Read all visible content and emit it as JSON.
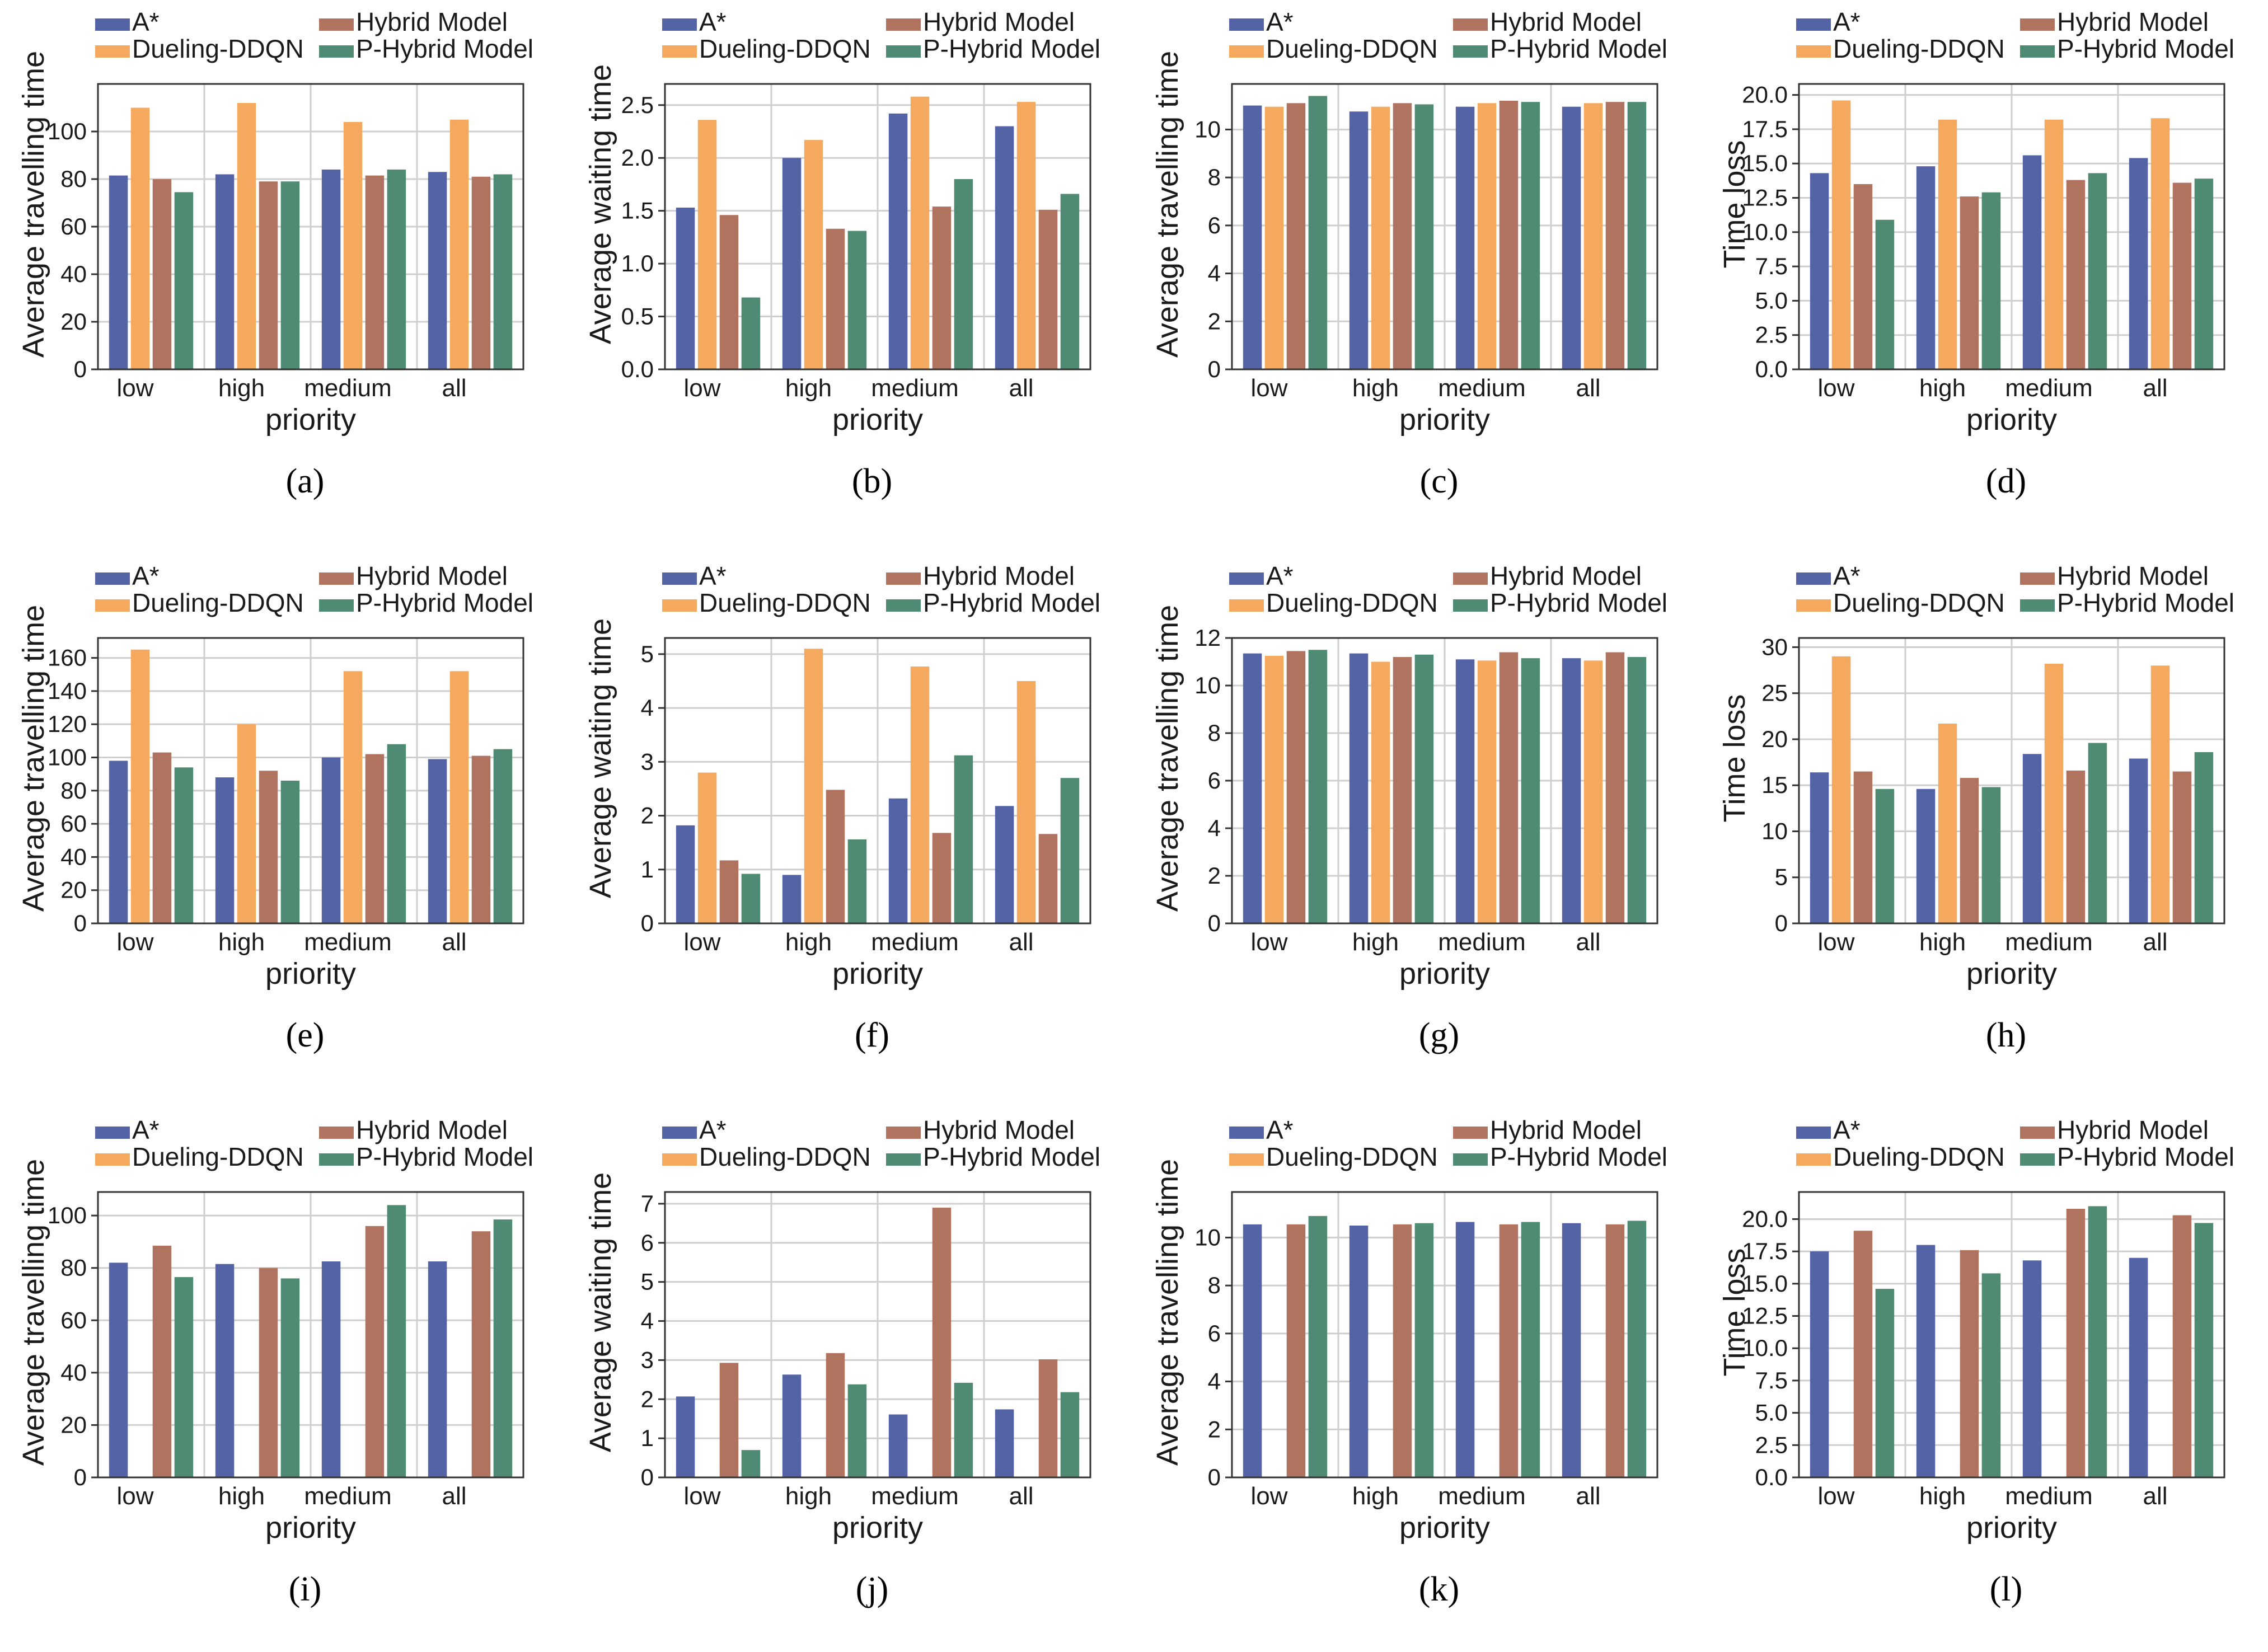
{
  "legend_labels": [
    "A*",
    "Dueling-DDQN",
    "Hybrid Model",
    "P-Hybrid Model"
  ],
  "colors": {
    "astar": "#5462a6",
    "dueling": "#f4a95e",
    "hybrid": "#b07360",
    "phybrid": "#4f8a72",
    "grid": "#cfcfcf",
    "axis": "#333333"
  },
  "chart_data": [
    {
      "id": "a",
      "caption": "(a)",
      "type": "bar",
      "title": "",
      "xlabel": "priority",
      "ylabel": "Average travelling time",
      "categories": [
        "low",
        "high",
        "medium",
        "all"
      ],
      "ylim": [
        0,
        120
      ],
      "yticks": [
        "0",
        "20",
        "40",
        "60",
        "80",
        "100"
      ],
      "ytick_values": [
        0,
        20,
        40,
        60,
        80,
        100
      ],
      "series": [
        {
          "name": "A*",
          "values": [
            81.5,
            82,
            84,
            83
          ]
        },
        {
          "name": "Dueling-DDQN",
          "values": [
            110,
            112,
            104,
            105
          ]
        },
        {
          "name": "Hybrid Model",
          "values": [
            80,
            79,
            81.5,
            81
          ]
        },
        {
          "name": "P-Hybrid Model",
          "values": [
            74.5,
            79,
            84,
            82
          ]
        }
      ]
    },
    {
      "id": "b",
      "caption": "(b)",
      "type": "bar",
      "title": "",
      "xlabel": "priority",
      "ylabel": "Average waiting time",
      "categories": [
        "low",
        "high",
        "medium",
        "all"
      ],
      "ylim": [
        0,
        2.7
      ],
      "yticks": [
        "0.0",
        "0.5",
        "1.0",
        "1.5",
        "2.0",
        "2.5"
      ],
      "ytick_values": [
        0,
        0.5,
        1.0,
        1.5,
        2.0,
        2.5
      ],
      "series": [
        {
          "name": "A*",
          "values": [
            1.53,
            2.0,
            2.42,
            2.3
          ]
        },
        {
          "name": "Dueling-DDQN",
          "values": [
            2.36,
            2.17,
            2.58,
            2.53
          ]
        },
        {
          "name": "Hybrid Model",
          "values": [
            1.46,
            1.33,
            1.54,
            1.51
          ]
        },
        {
          "name": "P-Hybrid Model",
          "values": [
            0.68,
            1.31,
            1.8,
            1.66
          ]
        }
      ]
    },
    {
      "id": "c",
      "caption": "(c)",
      "type": "bar",
      "title": "",
      "xlabel": "priority",
      "ylabel": "Average travelling time",
      "categories": [
        "low",
        "high",
        "medium",
        "all"
      ],
      "ylim": [
        0,
        11.9
      ],
      "yticks": [
        "0",
        "2",
        "4",
        "6",
        "8",
        "10"
      ],
      "ytick_values": [
        0,
        2,
        4,
        6,
        8,
        10
      ],
      "series": [
        {
          "name": "A*",
          "values": [
            11.0,
            10.75,
            10.95,
            10.95
          ]
        },
        {
          "name": "Dueling-DDQN",
          "values": [
            10.95,
            10.95,
            11.1,
            11.1
          ]
        },
        {
          "name": "Hybrid Model",
          "values": [
            11.1,
            11.1,
            11.2,
            11.15
          ]
        },
        {
          "name": "P-Hybrid Model",
          "values": [
            11.4,
            11.05,
            11.15,
            11.15
          ]
        }
      ]
    },
    {
      "id": "d",
      "caption": "(d)",
      "type": "bar",
      "title": "",
      "xlabel": "priority",
      "ylabel": "Time loss",
      "categories": [
        "low",
        "high",
        "medium",
        "all"
      ],
      "ylim": [
        0,
        20.8
      ],
      "yticks": [
        "0.0",
        "2.5",
        "5.0",
        "7.5",
        "10.0",
        "12.5",
        "15.0",
        "17.5",
        "20.0"
      ],
      "ytick_values": [
        0,
        2.5,
        5,
        7.5,
        10,
        12.5,
        15,
        17.5,
        20
      ],
      "series": [
        {
          "name": "A*",
          "values": [
            14.3,
            14.8,
            15.6,
            15.4
          ]
        },
        {
          "name": "Dueling-DDQN",
          "values": [
            19.6,
            18.2,
            18.2,
            18.3
          ]
        },
        {
          "name": "Hybrid Model",
          "values": [
            13.5,
            12.6,
            13.8,
            13.6
          ]
        },
        {
          "name": "P-Hybrid Model",
          "values": [
            10.9,
            12.9,
            14.3,
            13.9
          ]
        }
      ]
    },
    {
      "id": "e",
      "caption": "(e)",
      "type": "bar",
      "title": "",
      "xlabel": "priority",
      "ylabel": "Average travelling time",
      "categories": [
        "low",
        "high",
        "medium",
        "all"
      ],
      "ylim": [
        0,
        172
      ],
      "yticks": [
        "0",
        "20",
        "40",
        "60",
        "80",
        "100",
        "120",
        "140",
        "160"
      ],
      "ytick_values": [
        0,
        20,
        40,
        60,
        80,
        100,
        120,
        140,
        160
      ],
      "series": [
        {
          "name": "A*",
          "values": [
            98,
            88,
            100,
            99
          ]
        },
        {
          "name": "Dueling-DDQN",
          "values": [
            165,
            120,
            152,
            152
          ]
        },
        {
          "name": "Hybrid Model",
          "values": [
            103,
            92,
            102,
            101
          ]
        },
        {
          "name": "P-Hybrid Model",
          "values": [
            94,
            86,
            108,
            105
          ]
        }
      ]
    },
    {
      "id": "f",
      "caption": "(f)",
      "type": "bar",
      "title": "",
      "xlabel": "priority",
      "ylabel": "Average waiting time",
      "categories": [
        "low",
        "high",
        "medium",
        "all"
      ],
      "ylim": [
        0,
        5.3
      ],
      "yticks": [
        "0",
        "1",
        "2",
        "3",
        "4",
        "5"
      ],
      "ytick_values": [
        0,
        1,
        2,
        3,
        4,
        5
      ],
      "series": [
        {
          "name": "A*",
          "values": [
            1.82,
            0.9,
            2.32,
            2.18
          ]
        },
        {
          "name": "Dueling-DDQN",
          "values": [
            2.8,
            5.1,
            4.77,
            4.5
          ]
        },
        {
          "name": "Hybrid Model",
          "values": [
            1.17,
            2.48,
            1.68,
            1.66
          ]
        },
        {
          "name": "P-Hybrid Model",
          "values": [
            0.92,
            1.56,
            3.12,
            2.7
          ]
        }
      ]
    },
    {
      "id": "g",
      "caption": "(g)",
      "type": "bar",
      "title": "",
      "xlabel": "priority",
      "ylabel": "Average travelling time",
      "categories": [
        "low",
        "high",
        "medium",
        "all"
      ],
      "ylim": [
        0,
        12
      ],
      "yticks": [
        "0",
        "2",
        "4",
        "6",
        "8",
        "10",
        "12"
      ],
      "ytick_values": [
        0,
        2,
        4,
        6,
        8,
        10,
        12
      ],
      "series": [
        {
          "name": "A*",
          "values": [
            11.35,
            11.35,
            11.1,
            11.15
          ]
        },
        {
          "name": "Dueling-DDQN",
          "values": [
            11.25,
            11.0,
            11.05,
            11.05
          ]
        },
        {
          "name": "Hybrid Model",
          "values": [
            11.45,
            11.2,
            11.4,
            11.4
          ]
        },
        {
          "name": "P-Hybrid Model",
          "values": [
            11.5,
            11.3,
            11.15,
            11.2
          ]
        }
      ]
    },
    {
      "id": "h",
      "caption": "(h)",
      "type": "bar",
      "title": "",
      "xlabel": "priority",
      "ylabel": "Time loss",
      "categories": [
        "low",
        "high",
        "medium",
        "all"
      ],
      "ylim": [
        0,
        31
      ],
      "yticks": [
        "0",
        "5",
        "10",
        "15",
        "20",
        "25",
        "30"
      ],
      "ytick_values": [
        0,
        5,
        10,
        15,
        20,
        25,
        30
      ],
      "series": [
        {
          "name": "A*",
          "values": [
            16.4,
            14.6,
            18.4,
            17.9
          ]
        },
        {
          "name": "Dueling-DDQN",
          "values": [
            29.0,
            21.7,
            28.2,
            28.0
          ]
        },
        {
          "name": "Hybrid Model",
          "values": [
            16.5,
            15.8,
            16.6,
            16.5
          ]
        },
        {
          "name": "P-Hybrid Model",
          "values": [
            14.6,
            14.8,
            19.6,
            18.6
          ]
        }
      ]
    },
    {
      "id": "i",
      "caption": "(i)",
      "type": "bar",
      "title": "",
      "xlabel": "priority",
      "ylabel": "Average travelling time",
      "categories": [
        "low",
        "high",
        "medium",
        "all"
      ],
      "ylim": [
        0,
        109
      ],
      "yticks": [
        "0",
        "20",
        "40",
        "60",
        "80",
        "100"
      ],
      "ytick_values": [
        0,
        20,
        40,
        60,
        80,
        100
      ],
      "series": [
        {
          "name": "A*",
          "values": [
            82,
            81.5,
            82.5,
            82.5
          ]
        },
        {
          "name": "Dueling-DDQN",
          "values": [
            0,
            0,
            0,
            0
          ]
        },
        {
          "name": "Hybrid Model",
          "values": [
            88.5,
            80,
            96,
            94
          ]
        },
        {
          "name": "P-Hybrid Model",
          "values": [
            76.5,
            76,
            104,
            98.5
          ]
        }
      ]
    },
    {
      "id": "j",
      "caption": "(j)",
      "type": "bar",
      "title": "",
      "xlabel": "priority",
      "ylabel": "Average waiting time",
      "categories": [
        "low",
        "high",
        "medium",
        "all"
      ],
      "ylim": [
        0,
        7.3
      ],
      "yticks": [
        "0",
        "1",
        "2",
        "3",
        "4",
        "5",
        "6",
        "7"
      ],
      "ytick_values": [
        0,
        1,
        2,
        3,
        4,
        5,
        6,
        7
      ],
      "series": [
        {
          "name": "A*",
          "values": [
            2.07,
            2.63,
            1.61,
            1.74
          ]
        },
        {
          "name": "Dueling-DDQN",
          "values": [
            0,
            0,
            0,
            0
          ]
        },
        {
          "name": "Hybrid Model",
          "values": [
            2.93,
            3.18,
            6.9,
            3.02
          ]
        },
        {
          "name": "P-Hybrid Model",
          "values": [
            0.7,
            2.38,
            2.42,
            2.18
          ]
        }
      ]
    },
    {
      "id": "k",
      "caption": "(k)",
      "type": "bar",
      "title": "",
      "xlabel": "priority",
      "ylabel": "Average travelling time",
      "categories": [
        "low",
        "high",
        "medium",
        "all"
      ],
      "ylim": [
        0,
        11.9
      ],
      "yticks": [
        "0",
        "2",
        "4",
        "6",
        "8",
        "10"
      ],
      "ytick_values": [
        0,
        2,
        4,
        6,
        8,
        10
      ],
      "series": [
        {
          "name": "A*",
          "values": [
            10.55,
            10.5,
            10.65,
            10.6
          ]
        },
        {
          "name": "Dueling-DDQN",
          "values": [
            0,
            0,
            0,
            0
          ]
        },
        {
          "name": "Hybrid Model",
          "values": [
            10.55,
            10.55,
            10.55,
            10.55
          ]
        },
        {
          "name": "P-Hybrid Model",
          "values": [
            10.9,
            10.6,
            10.65,
            10.7
          ]
        }
      ]
    },
    {
      "id": "l",
      "caption": "(l)",
      "type": "bar",
      "title": "",
      "xlabel": "priority",
      "ylabel": "Time loss",
      "categories": [
        "low",
        "high",
        "medium",
        "all"
      ],
      "ylim": [
        0,
        22.1
      ],
      "yticks": [
        "0.0",
        "2.5",
        "5.0",
        "7.5",
        "10.0",
        "12.5",
        "15.0",
        "17.5",
        "20.0"
      ],
      "ytick_values": [
        0,
        2.5,
        5,
        7.5,
        10,
        12.5,
        15,
        17.5,
        20
      ],
      "series": [
        {
          "name": "A*",
          "values": [
            17.5,
            18.0,
            16.8,
            17.0
          ]
        },
        {
          "name": "Dueling-DDQN",
          "values": [
            0,
            0,
            0,
            0
          ]
        },
        {
          "name": "Hybrid Model",
          "values": [
            19.1,
            17.6,
            20.8,
            20.3
          ]
        },
        {
          "name": "P-Hybrid Model",
          "values": [
            14.6,
            15.8,
            21.0,
            19.7
          ]
        }
      ]
    }
  ]
}
